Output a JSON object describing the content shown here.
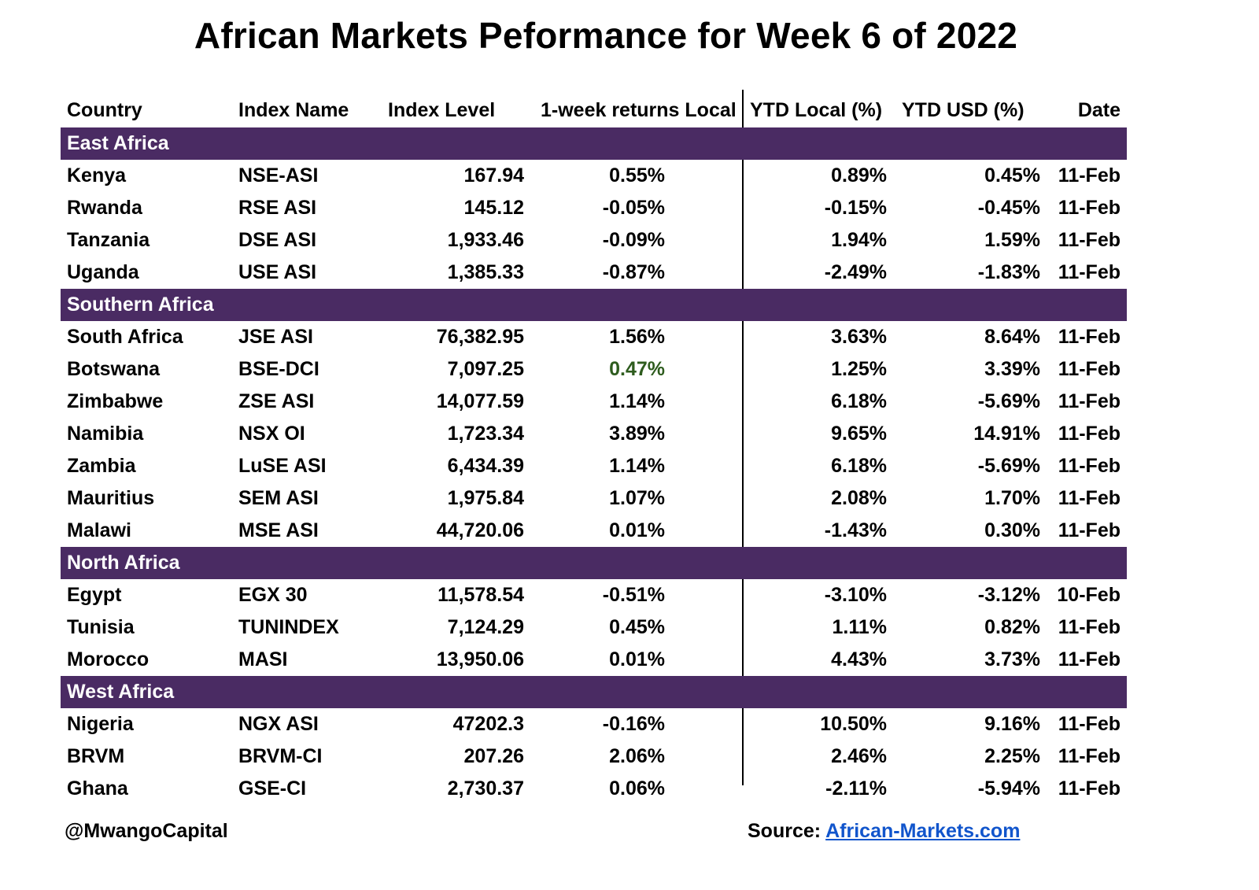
{
  "title": "African Markets Peformance for Week 6 of 2022",
  "headers": {
    "country": "Country",
    "index_name": "Index Name",
    "index_level": "Index Level",
    "week_return": "1-week returns Local",
    "ytd_local": "YTD Local (%)",
    "ytd_usd": "YTD USD (%)",
    "date": "Date"
  },
  "colors": {
    "region_band": "#4a2b63",
    "highlight_green": "#2e5c1e",
    "link": "#1155cc"
  },
  "regions": [
    {
      "name": "East Africa",
      "rows": [
        {
          "country": "Kenya",
          "index": "NSE-ASI",
          "level": "167.94",
          "week": "0.55%",
          "ytd_local": "0.89%",
          "ytd_usd": "0.45%",
          "date": "11-Feb"
        },
        {
          "country": "Rwanda",
          "index": "RSE ASI",
          "level": "145.12",
          "week": "-0.05%",
          "ytd_local": "-0.15%",
          "ytd_usd": "-0.45%",
          "date": "11-Feb"
        },
        {
          "country": "Tanzania",
          "index": "DSE ASI",
          "level": "1,933.46",
          "week": "-0.09%",
          "ytd_local": "1.94%",
          "ytd_usd": "1.59%",
          "date": "11-Feb"
        },
        {
          "country": "Uganda",
          "index": "USE ASI",
          "level": "1,385.33",
          "week": "-0.87%",
          "ytd_local": "-2.49%",
          "ytd_usd": "-1.83%",
          "date": "11-Feb"
        }
      ]
    },
    {
      "name": "Southern Africa",
      "rows": [
        {
          "country": "South Africa",
          "index": "JSE ASI",
          "level": "76,382.95",
          "week": "1.56%",
          "ytd_local": "3.63%",
          "ytd_usd": "8.64%",
          "date": "11-Feb"
        },
        {
          "country": "Botswana",
          "index": "BSE-DCI",
          "level": "7,097.25",
          "week": "0.47%",
          "ytd_local": "1.25%",
          "ytd_usd": "3.39%",
          "date": "11-Feb"
        },
        {
          "country": "Zimbabwe",
          "index": "ZSE ASI",
          "level": "14,077.59",
          "week": "1.14%",
          "ytd_local": "6.18%",
          "ytd_usd": "-5.69%",
          "date": "11-Feb"
        },
        {
          "country": "Namibia",
          "index": "NSX OI",
          "level": "1,723.34",
          "week": "3.89%",
          "ytd_local": "9.65%",
          "ytd_usd": "14.91%",
          "date": "11-Feb"
        },
        {
          "country": "Zambia",
          "index": "LuSE ASI",
          "level": "6,434.39",
          "week": "1.14%",
          "ytd_local": "6.18%",
          "ytd_usd": "-5.69%",
          "date": "11-Feb"
        },
        {
          "country": "Mauritius",
          "index": "SEM ASI",
          "level": "1,975.84",
          "week": "1.07%",
          "ytd_local": "2.08%",
          "ytd_usd": "1.70%",
          "date": "11-Feb"
        },
        {
          "country": "Malawi",
          "index": "MSE ASI",
          "level": "44,720.06",
          "week": "0.01%",
          "ytd_local": "-1.43%",
          "ytd_usd": "0.30%",
          "date": "11-Feb"
        }
      ]
    },
    {
      "name": "North Africa",
      "rows": [
        {
          "country": "Egypt",
          "index": "EGX 30",
          "level": "11,578.54",
          "week": "-0.51%",
          "ytd_local": "-3.10%",
          "ytd_usd": "-3.12%",
          "date": "10-Feb"
        },
        {
          "country": "Tunisia",
          "index": "TUNINDEX",
          "level": "7,124.29",
          "week": "0.45%",
          "ytd_local": "1.11%",
          "ytd_usd": "0.82%",
          "date": "11-Feb"
        },
        {
          "country": "Morocco",
          "index": "MASI",
          "level": "13,950.06",
          "week": "0.01%",
          "ytd_local": "4.43%",
          "ytd_usd": "3.73%",
          "date": "11-Feb"
        }
      ]
    },
    {
      "name": "West Africa",
      "rows": [
        {
          "country": "Nigeria",
          "index": "NGX ASI",
          "level": "47202.3",
          "week": "-0.16%",
          "ytd_local": "10.50%",
          "ytd_usd": "9.16%",
          "date": "11-Feb"
        },
        {
          "country": "BRVM",
          "index": "BRVM-CI",
          "level": "207.26",
          "week": "2.06%",
          "ytd_local": "2.46%",
          "ytd_usd": "2.25%",
          "date": "11-Feb"
        },
        {
          "country": "Ghana",
          "index": "GSE-CI",
          "level": "2,730.37",
          "week": "0.06%",
          "ytd_local": "-2.11%",
          "ytd_usd": "-5.94%",
          "date": "11-Feb"
        }
      ]
    }
  ],
  "footer": {
    "handle": "@MwangoCapital",
    "source_label": "Source:",
    "source_link": "African-Markets.com"
  }
}
